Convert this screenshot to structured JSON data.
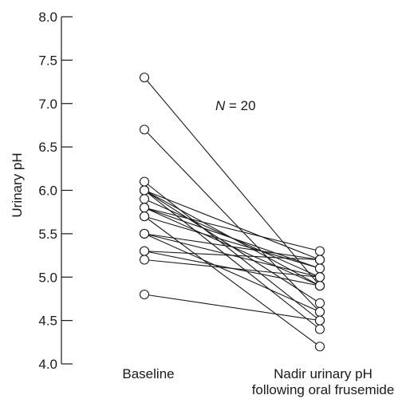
{
  "chart_data": {
    "type": "line",
    "ylabel": "Urinary pH",
    "ylim": [
      4.0,
      8.0
    ],
    "yticks": [
      "4.0",
      "4.5",
      "5.0",
      "5.5",
      "6.0",
      "6.5",
      "7.0",
      "7.5",
      "8.0"
    ],
    "categories": [
      "Baseline",
      [
        "Nadir urinary pH",
        "following oral frusemide"
      ]
    ],
    "annotation": {
      "italic": "N",
      "rest": " = 20"
    },
    "grid": false,
    "colors": {
      "line": "#1a1a1a",
      "marker_fill": "#ffffff",
      "axis": "#1a1a1a"
    },
    "pairs": [
      [
        7.3,
        4.9
      ],
      [
        6.7,
        4.6
      ],
      [
        6.1,
        4.5
      ],
      [
        6.0,
        5.2
      ],
      [
        6.0,
        4.9
      ],
      [
        6.0,
        4.7
      ],
      [
        6.0,
        4.4
      ],
      [
        5.9,
        5.0
      ],
      [
        5.8,
        5.3
      ],
      [
        5.8,
        5.1
      ],
      [
        5.8,
        4.9
      ],
      [
        5.7,
        5.1
      ],
      [
        5.7,
        4.2
      ],
      [
        5.5,
        5.2
      ],
      [
        5.5,
        5.0
      ],
      [
        5.5,
        4.6
      ],
      [
        5.3,
        5.2
      ],
      [
        5.3,
        4.9
      ],
      [
        5.2,
        5.0
      ],
      [
        4.8,
        4.5
      ]
    ]
  }
}
